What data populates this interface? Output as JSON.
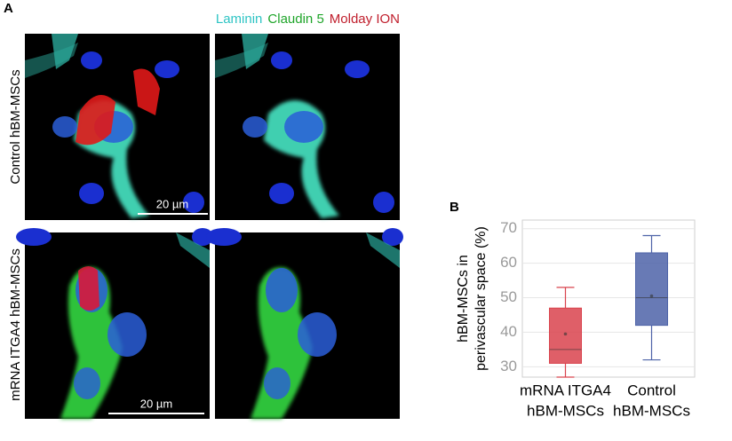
{
  "panel_a": {
    "label": "A",
    "legend": [
      {
        "text": "Laminin",
        "color": "#2ec4c4"
      },
      {
        "text": "Claudin 5",
        "color": "#1fa52a"
      },
      {
        "text": "Molday ION",
        "color": "#c01e2c"
      }
    ],
    "row_labels": [
      "Control hBM-MSCs",
      "mRNA ITGA4  hBM-MSCs"
    ],
    "scale_bars": [
      "20 µm",
      "20 µm"
    ]
  },
  "chart_data": {
    "type": "box",
    "label": "B",
    "ylabel": [
      "hBM-MSCs in",
      "perivascular space (%)"
    ],
    "categories": [
      [
        "mRNA ITGA4",
        "hBM-MSCs"
      ],
      [
        "Control",
        "hBM-MSCs"
      ]
    ],
    "boxes": [
      {
        "color": "#d9434d",
        "min": 27,
        "q1": 31,
        "median": 35,
        "q3": 47,
        "max": 53,
        "mean": 39.5
      },
      {
        "color": "#4e63a8",
        "min": 32,
        "q1": 42,
        "median": 50,
        "q3": 63,
        "max": 68,
        "mean": 50.5
      }
    ],
    "ylim": [
      27,
      72.5
    ],
    "yticks": [
      30,
      40,
      50,
      60,
      70
    ],
    "grid": true
  }
}
